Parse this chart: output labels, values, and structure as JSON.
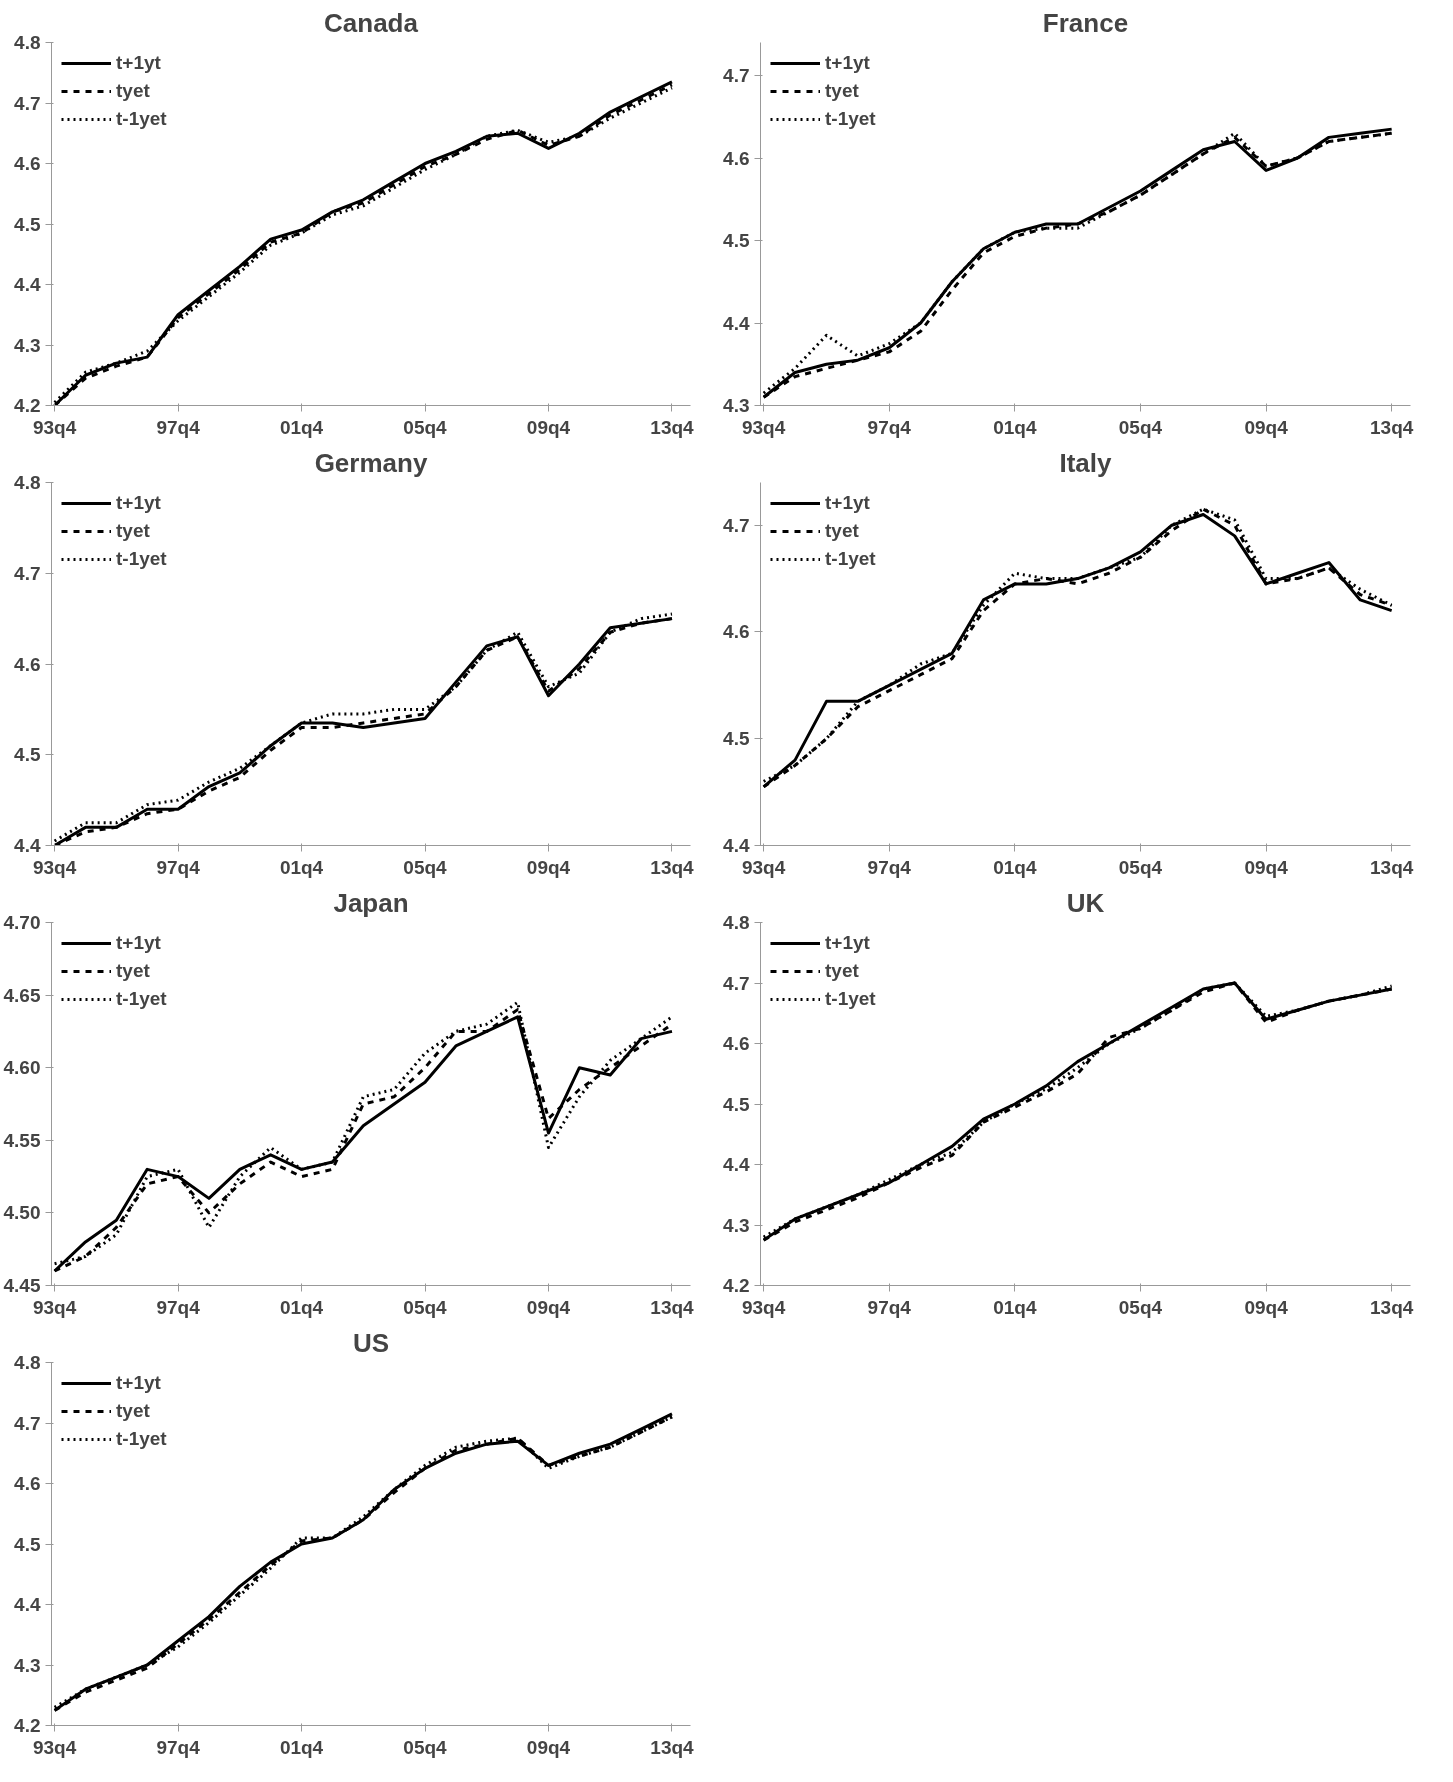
{
  "chart_data": [
    {
      "type": "line",
      "title": "Canada",
      "legend": "top left",
      "marker": "none",
      "grid": false,
      "ylim": [
        4.2,
        4.8
      ],
      "yticks": [
        4.2,
        4.3,
        4.4,
        4.5,
        4.6,
        4.7,
        4.8
      ],
      "categories": [
        "93q4",
        null,
        null,
        null,
        "97q4",
        null,
        null,
        null,
        "01q4",
        null,
        null,
        null,
        "05q4",
        null,
        null,
        null,
        "09q4",
        null,
        null,
        null,
        "13q4"
      ],
      "series": [
        {
          "name": "t+1yt",
          "color": "#000000",
          "line_style": "solid",
          "values": [
            4.2,
            4.25,
            4.27,
            4.28,
            4.35,
            4.39,
            4.43,
            4.475,
            4.49,
            4.52,
            4.54,
            4.57,
            4.6,
            4.62,
            4.645,
            4.65,
            4.625,
            4.65,
            4.685,
            4.71,
            4.735
          ]
        },
        {
          "name": "tyet",
          "color": "#000000",
          "line_style": "dashed",
          "values": [
            4.2,
            4.245,
            4.265,
            4.28,
            4.345,
            4.385,
            4.425,
            4.47,
            4.485,
            4.52,
            4.535,
            4.565,
            4.595,
            4.615,
            4.64,
            4.655,
            4.63,
            4.645,
            4.68,
            4.705,
            4.73
          ]
        },
        {
          "name": "t-1yet",
          "color": "#000000",
          "line_style": "dotted",
          "values": [
            4.205,
            4.255,
            4.27,
            4.29,
            4.34,
            4.38,
            4.42,
            4.465,
            4.485,
            4.515,
            4.53,
            4.56,
            4.59,
            4.615,
            4.645,
            4.655,
            4.635,
            4.645,
            4.675,
            4.7,
            4.725
          ]
        }
      ]
    },
    {
      "type": "line",
      "title": "France",
      "legend": "top left",
      "marker": "none",
      "grid": false,
      "ylim": [
        4.3,
        4.74
      ],
      "yticks": [
        4.3,
        4.4,
        4.5,
        4.6,
        4.7
      ],
      "categories": [
        "93q4",
        null,
        null,
        null,
        "97q4",
        null,
        null,
        null,
        "01q4",
        null,
        null,
        null,
        "05q4",
        null,
        null,
        null,
        "09q4",
        null,
        null,
        null,
        "13q4"
      ],
      "series": [
        {
          "name": "t+1yt",
          "color": "#000000",
          "line_style": "solid",
          "values": [
            4.31,
            4.34,
            4.35,
            4.355,
            4.37,
            4.4,
            4.45,
            4.49,
            4.51,
            4.52,
            4.52,
            4.54,
            4.56,
            4.585,
            4.61,
            4.62,
            4.585,
            4.6,
            4.625,
            4.63,
            4.635
          ]
        },
        {
          "name": "tyet",
          "color": "#000000",
          "line_style": "dashed",
          "values": [
            4.31,
            4.335,
            4.345,
            4.355,
            4.365,
            4.39,
            4.44,
            4.485,
            4.505,
            4.515,
            4.52,
            4.535,
            4.555,
            4.58,
            4.605,
            4.625,
            4.59,
            4.6,
            4.62,
            4.625,
            4.63
          ]
        },
        {
          "name": "t-1yet",
          "color": "#000000",
          "line_style": "dotted",
          "values": [
            4.315,
            4.345,
            4.385,
            4.36,
            4.375,
            4.4,
            4.45,
            4.49,
            4.51,
            4.515,
            4.515,
            4.535,
            4.555,
            4.58,
            4.605,
            4.63,
            4.59,
            4.6,
            4.62,
            4.625,
            4.63
          ]
        }
      ]
    },
    {
      "type": "line",
      "title": "Germany",
      "legend": "top left",
      "marker": "none",
      "grid": false,
      "ylim": [
        4.4,
        4.8
      ],
      "yticks": [
        4.4,
        4.5,
        4.6,
        4.7,
        4.8
      ],
      "categories": [
        "93q4",
        null,
        null,
        null,
        "97q4",
        null,
        null,
        null,
        "01q4",
        null,
        null,
        null,
        "05q4",
        null,
        null,
        null,
        "09q4",
        null,
        null,
        null,
        "13q4"
      ],
      "series": [
        {
          "name": "t+1yt",
          "color": "#000000",
          "line_style": "solid",
          "values": [
            4.4,
            4.42,
            4.42,
            4.44,
            4.44,
            4.465,
            4.48,
            4.51,
            4.535,
            4.535,
            4.53,
            4.535,
            4.54,
            4.58,
            4.62,
            4.63,
            4.565,
            4.6,
            4.64,
            4.645,
            4.65
          ]
        },
        {
          "name": "tyet",
          "color": "#000000",
          "line_style": "dashed",
          "values": [
            4.4,
            4.415,
            4.42,
            4.435,
            4.44,
            4.46,
            4.475,
            4.505,
            4.53,
            4.53,
            4.535,
            4.54,
            4.545,
            4.575,
            4.615,
            4.63,
            4.57,
            4.595,
            4.635,
            4.645,
            4.65
          ]
        },
        {
          "name": "t-1yet",
          "color": "#000000",
          "line_style": "dotted",
          "values": [
            4.405,
            4.425,
            4.425,
            4.445,
            4.45,
            4.47,
            4.485,
            4.51,
            4.535,
            4.545,
            4.545,
            4.55,
            4.55,
            4.575,
            4.615,
            4.635,
            4.575,
            4.59,
            4.635,
            4.65,
            4.655
          ]
        }
      ]
    },
    {
      "type": "line",
      "title": "Italy",
      "legend": "top left",
      "marker": "none",
      "grid": false,
      "ylim": [
        4.4,
        4.74
      ],
      "yticks": [
        4.4,
        4.5,
        4.6,
        4.7
      ],
      "categories": [
        "93q4",
        null,
        null,
        null,
        "97q4",
        null,
        null,
        null,
        "01q4",
        null,
        null,
        null,
        "05q4",
        null,
        null,
        null,
        "09q4",
        null,
        null,
        null,
        "13q4"
      ],
      "series": [
        {
          "name": "t+1yt",
          "color": "#000000",
          "line_style": "solid",
          "values": [
            4.455,
            4.48,
            4.535,
            4.535,
            4.55,
            4.565,
            4.58,
            4.63,
            4.645,
            4.645,
            4.65,
            4.66,
            4.675,
            4.7,
            4.71,
            4.69,
            4.645,
            4.655,
            4.665,
            4.63,
            4.62
          ]
        },
        {
          "name": "tyet",
          "color": "#000000",
          "line_style": "dashed",
          "values": [
            4.455,
            4.475,
            4.5,
            4.53,
            4.545,
            4.56,
            4.575,
            4.62,
            4.645,
            4.65,
            4.645,
            4.655,
            4.67,
            4.695,
            4.715,
            4.7,
            4.645,
            4.65,
            4.66,
            4.635,
            4.625
          ]
        },
        {
          "name": "t-1yet",
          "color": "#000000",
          "line_style": "dotted",
          "values": [
            4.46,
            4.475,
            4.5,
            4.535,
            4.55,
            4.57,
            4.58,
            4.625,
            4.655,
            4.65,
            4.65,
            4.66,
            4.67,
            4.7,
            4.715,
            4.705,
            4.65,
            4.65,
            4.66,
            4.64,
            4.625
          ]
        }
      ]
    },
    {
      "type": "line",
      "title": "Japan",
      "legend": "top left",
      "marker": "none",
      "grid": false,
      "ylim": [
        4.45,
        4.7
      ],
      "yticks": [
        {
          "value": 4.45,
          "label": "4.45"
        },
        {
          "value": 4.5,
          "label": "4.50"
        },
        {
          "value": 4.55,
          "label": "4.55"
        },
        {
          "value": 4.6,
          "label": "4.60"
        },
        {
          "value": 4.65,
          "label": "4.65"
        },
        {
          "value": 4.7,
          "label": "4.70"
        }
      ],
      "categories": [
        "93q4",
        null,
        null,
        null,
        "97q4",
        null,
        null,
        null,
        "01q4",
        null,
        null,
        null,
        "05q4",
        null,
        null,
        null,
        "09q4",
        null,
        null,
        null,
        "13q4"
      ],
      "series": [
        {
          "name": "t+1yt",
          "color": "#000000",
          "line_style": "solid",
          "values": [
            4.46,
            4.48,
            4.495,
            4.53,
            4.525,
            4.51,
            4.53,
            4.54,
            4.53,
            4.535,
            4.56,
            4.575,
            4.59,
            4.615,
            4.625,
            4.635,
            4.555,
            4.6,
            4.595,
            4.62,
            4.625
          ]
        },
        {
          "name": "tyet",
          "color": "#000000",
          "line_style": "dashed",
          "values": [
            4.46,
            4.47,
            4.49,
            4.52,
            4.525,
            4.5,
            4.52,
            4.535,
            4.525,
            4.53,
            4.575,
            4.58,
            4.6,
            4.625,
            4.625,
            4.64,
            4.565,
            4.585,
            4.6,
            4.615,
            4.63
          ]
        },
        {
          "name": "t-1yet",
          "color": "#000000",
          "line_style": "dotted",
          "values": [
            4.465,
            4.47,
            4.485,
            4.525,
            4.53,
            4.49,
            4.525,
            4.545,
            4.53,
            4.535,
            4.58,
            4.585,
            4.61,
            4.625,
            4.63,
            4.645,
            4.545,
            4.58,
            4.605,
            4.62,
            4.635
          ]
        }
      ]
    },
    {
      "type": "line",
      "title": "UK",
      "legend": "top left",
      "marker": "none",
      "grid": false,
      "ylim": [
        4.2,
        4.8
      ],
      "yticks": [
        4.2,
        4.3,
        4.4,
        4.5,
        4.6,
        4.7,
        4.8
      ],
      "categories": [
        "93q4",
        null,
        null,
        null,
        "97q4",
        null,
        null,
        null,
        "01q4",
        null,
        null,
        null,
        "05q4",
        null,
        null,
        null,
        "09q4",
        null,
        null,
        null,
        "13q4"
      ],
      "series": [
        {
          "name": "t+1yt",
          "color": "#000000",
          "line_style": "solid",
          "values": [
            4.275,
            4.31,
            4.33,
            4.35,
            4.37,
            4.4,
            4.43,
            4.475,
            4.5,
            4.53,
            4.57,
            4.6,
            4.63,
            4.66,
            4.69,
            4.7,
            4.64,
            4.655,
            4.67,
            4.68,
            4.69
          ]
        },
        {
          "name": "tyet",
          "color": "#000000",
          "line_style": "dashed",
          "values": [
            4.275,
            4.305,
            4.325,
            4.345,
            4.37,
            4.395,
            4.415,
            4.47,
            4.495,
            4.52,
            4.55,
            4.61,
            4.625,
            4.655,
            4.685,
            4.7,
            4.635,
            4.655,
            4.67,
            4.68,
            4.69
          ]
        },
        {
          "name": "t-1yet",
          "color": "#000000",
          "line_style": "dotted",
          "values": [
            4.28,
            4.31,
            4.33,
            4.35,
            4.375,
            4.4,
            4.42,
            4.47,
            4.5,
            4.525,
            4.56,
            4.6,
            4.625,
            4.655,
            4.69,
            4.7,
            4.645,
            4.655,
            4.67,
            4.68,
            4.695
          ]
        }
      ]
    },
    {
      "type": "line",
      "title": "US",
      "legend": "top left",
      "marker": "none",
      "grid": false,
      "ylim": [
        4.2,
        4.8
      ],
      "yticks": [
        4.2,
        4.3,
        4.4,
        4.5,
        4.6,
        4.7,
        4.8
      ],
      "categories": [
        "93q4",
        null,
        null,
        null,
        "97q4",
        null,
        null,
        null,
        "01q4",
        null,
        null,
        null,
        "05q4",
        null,
        null,
        null,
        "09q4",
        null,
        null,
        null,
        "13q4"
      ],
      "series": [
        {
          "name": "t+1yt",
          "color": "#000000",
          "line_style": "solid",
          "values": [
            4.225,
            4.26,
            4.28,
            4.3,
            4.34,
            4.38,
            4.43,
            4.47,
            4.5,
            4.51,
            4.54,
            4.59,
            4.625,
            4.65,
            4.665,
            4.67,
            4.63,
            4.65,
            4.665,
            4.69,
            4.715
          ]
        },
        {
          "name": "tyet",
          "color": "#000000",
          "line_style": "dashed",
          "values": [
            4.225,
            4.255,
            4.275,
            4.295,
            4.335,
            4.375,
            4.42,
            4.465,
            4.505,
            4.51,
            4.54,
            4.585,
            4.625,
            4.655,
            4.665,
            4.675,
            4.63,
            4.645,
            4.66,
            4.685,
            4.71
          ]
        },
        {
          "name": "t-1yet",
          "color": "#000000",
          "line_style": "dotted",
          "values": [
            4.23,
            4.26,
            4.28,
            4.3,
            4.33,
            4.37,
            4.415,
            4.46,
            4.51,
            4.51,
            4.545,
            4.59,
            4.63,
            4.66,
            4.67,
            4.675,
            4.625,
            4.645,
            4.66,
            4.685,
            4.71
          ]
        }
      ]
    }
  ]
}
